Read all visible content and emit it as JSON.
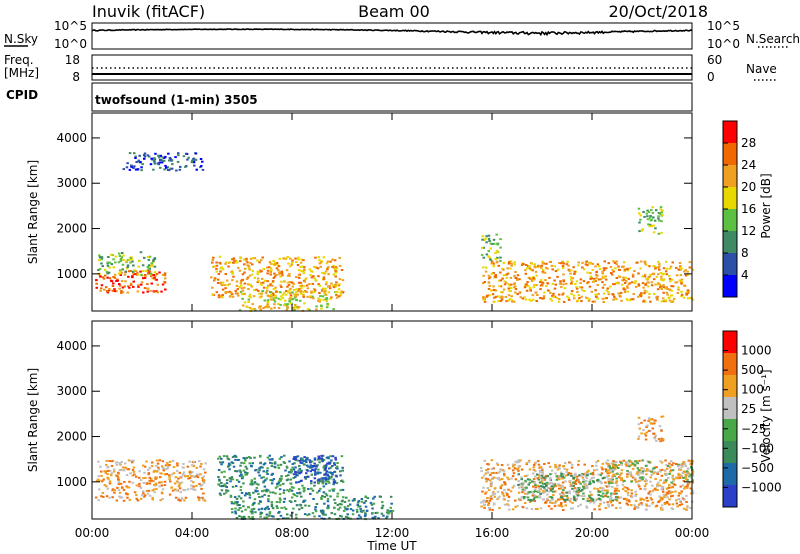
{
  "header": {
    "station": "Inuvik (fitACF)",
    "beam": "Beam 00",
    "date": "20/Oct/2018"
  },
  "noise_panel": {
    "left_label": "N.Sky",
    "right_label": "N.Search",
    "tick_top": "10^5",
    "tick_bottom": "10^0",
    "scale": "log",
    "ylim": [
      1,
      100000
    ]
  },
  "freq_panel": {
    "left_label_1": "Freq.",
    "left_label_2": "[MHz]",
    "right_label": "Nave",
    "left_ticks": [
      "18",
      "8"
    ],
    "right_ticks": [
      "60",
      "0"
    ]
  },
  "cpid": {
    "label": "CPID",
    "text": "twofsound (1-min) 3505"
  },
  "x_axis": {
    "title": "Time UT",
    "ticks": [
      "00:00",
      "04:00",
      "08:00",
      "12:00",
      "16:00",
      "20:00",
      "00:00"
    ],
    "xlim_hours": [
      0,
      24
    ]
  },
  "chart_data": [
    {
      "type": "heatmap",
      "title": "",
      "ylabel": "Slant Range [km]",
      "ylim": [
        180,
        4550
      ],
      "y_ticks": [
        "4000",
        "3000",
        "2000",
        "1000"
      ],
      "colorbar_label": "Power [dB]",
      "colorbar_ticks": [
        "28",
        "24",
        "20",
        "16",
        "12",
        "8",
        "4"
      ],
      "colorbar_colors": [
        "#0000ff",
        "#2c4fa8",
        "#3f8a64",
        "#5cc040",
        "#e8d800",
        "#f0a020",
        "#f06800",
        "#ff0000"
      ],
      "scatter_regions": [
        {
          "t": [
            0.1,
            3.0
          ],
          "r": [
            600,
            1100
          ],
          "level": 6
        },
        {
          "t": [
            0.2,
            2.5
          ],
          "r": [
            1000,
            1500
          ],
          "level": 3
        },
        {
          "t": [
            4.7,
            10.0
          ],
          "r": [
            500,
            1400
          ],
          "level": 5
        },
        {
          "t": [
            5.8,
            9.8
          ],
          "r": [
            200,
            650
          ],
          "level": 4
        },
        {
          "t": [
            15.6,
            24.0
          ],
          "r": [
            400,
            1300
          ],
          "level": 5
        },
        {
          "t": [
            15.5,
            16.3
          ],
          "r": [
            1300,
            1900
          ],
          "level": 3
        },
        {
          "t": [
            21.8,
            22.8
          ],
          "r": [
            1900,
            2500
          ],
          "level": 3
        },
        {
          "t": [
            1.2,
            4.4
          ],
          "r": [
            3300,
            3700
          ],
          "level": 1
        }
      ]
    },
    {
      "type": "heatmap",
      "title": "",
      "ylabel": "Slant Range [km]",
      "ylim": [
        180,
        4550
      ],
      "y_ticks": [
        "4000",
        "3000",
        "2000",
        "1000"
      ],
      "colorbar_label": "Velocity [m s⁻¹]",
      "colorbar_ticks": [
        "1000",
        "500",
        "100",
        "25",
        "−25",
        "−100",
        "−500",
        "−1000"
      ],
      "colorbar_colors": [
        "#2a40c8",
        "#1e6aa8",
        "#3a8a5a",
        "#48a848",
        "#c0c0c0",
        "#f0a020",
        "#f07010",
        "#ff0000"
      ],
      "scatter_regions": [
        {
          "t": [
            0.1,
            4.5
          ],
          "r": [
            600,
            1500
          ],
          "level": 5
        },
        {
          "t": [
            5.0,
            10.0
          ],
          "r": [
            700,
            1600
          ],
          "level": 2
        },
        {
          "t": [
            8.0,
            9.8
          ],
          "r": [
            1000,
            1600
          ],
          "level": 0
        },
        {
          "t": [
            5.5,
            12.0
          ],
          "r": [
            200,
            700
          ],
          "level": 2
        },
        {
          "t": [
            15.5,
            24.0
          ],
          "r": [
            400,
            1500
          ],
          "level": 5
        },
        {
          "t": [
            17.0,
            21.0
          ],
          "r": [
            600,
            1200
          ],
          "level": 3
        },
        {
          "t": [
            20.5,
            24.0
          ],
          "r": [
            1000,
            1500
          ],
          "level": 4
        },
        {
          "t": [
            21.8,
            22.8
          ],
          "r": [
            1900,
            2500
          ],
          "level": 5
        }
      ]
    }
  ]
}
